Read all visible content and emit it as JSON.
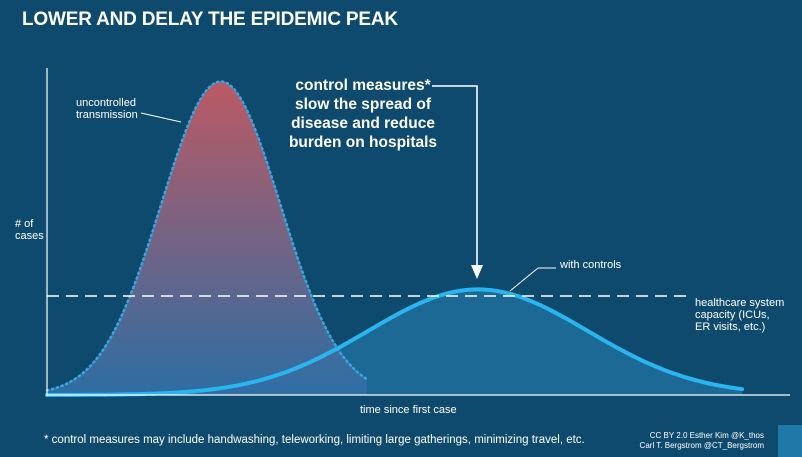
{
  "title": "LOWER AND DELAY THE EPIDEMIC PEAK",
  "annotations": {
    "uncontrolled": [
      "uncontrolled",
      "transmission"
    ],
    "control_measures": [
      "control measures*",
      "slow the spread of",
      "disease and reduce",
      "burden on hospitals"
    ],
    "with_controls": "with controls",
    "capacity": [
      "healthcare system",
      "capacity (ICUs,",
      "ER visits, etc.)"
    ]
  },
  "footnote": "* control measures may include handwashing, teleworking, limiting large gatherings, minimizing travel, etc.",
  "credit": [
    "CC BY 2.0  Esther  Kim  @K_thos",
    "Carl T. Bergstrom  @CT_Bergstrom"
  ],
  "colors": {
    "background": "#0e4a6e",
    "uncontrolled_top": "#c55a63",
    "uncontrolled_bottom": "#2f6fa6",
    "uncontrolled_outline": "#3aa6e0",
    "controlled_line": "#29b6f0",
    "controlled_fill": "#1e6f9e",
    "axis": "#ffffff"
  },
  "chart_data": {
    "type": "area",
    "xlabel": "time since first case",
    "ylabel": "# of\ncases",
    "xlim": [
      0,
      100
    ],
    "ylim": [
      0,
      100
    ],
    "grid": false,
    "series": [
      {
        "name": "uncontrolled transmission",
        "style": "dotted-outline, gradient fill",
        "mean": 25,
        "sd": 8.6,
        "peak": 95,
        "x_end": 46
      },
      {
        "name": "with controls",
        "style": "solid line, filled",
        "mean": 62,
        "sd": 15.8,
        "peak": 32,
        "x_end": 100
      }
    ],
    "reference_lines": [
      {
        "name": "healthcare system capacity (ICUs, ER visits, etc.)",
        "style": "dashed",
        "y": 30
      }
    ]
  }
}
